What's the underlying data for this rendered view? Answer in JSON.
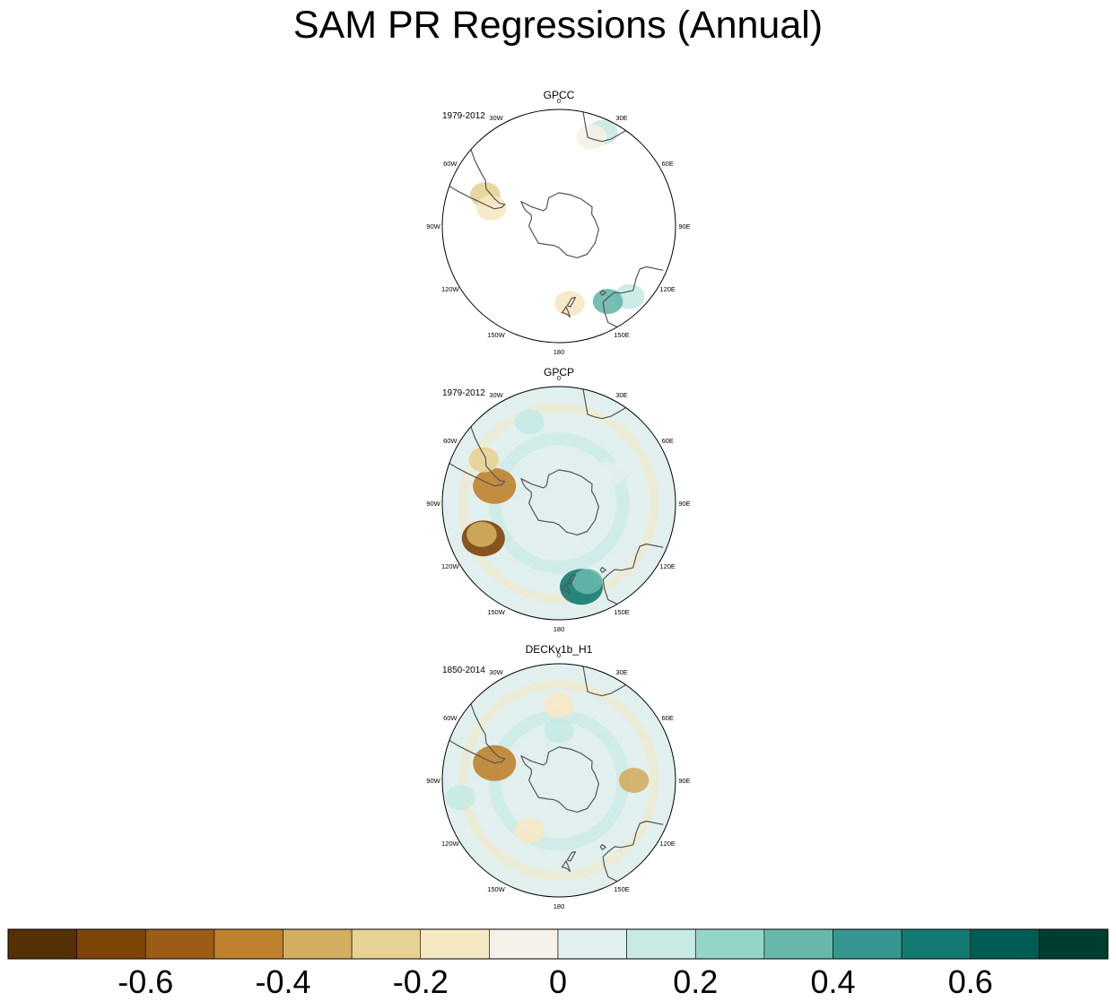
{
  "chart_data": {
    "type": "heatmap",
    "title": "SAM PR Regressions (Annual)",
    "projection": "south polar stereographic",
    "lon_labels": [
      "0",
      "30E",
      "60E",
      "90E",
      "120E",
      "150E",
      "180",
      "150W",
      "120W",
      "90W",
      "60W",
      "30W"
    ],
    "panels": [
      {
        "name": "GPCC",
        "period": "1979-2012",
        "coverage": "land only",
        "features": [
          {
            "region": "southern South America",
            "lon": -67,
            "lat": -42,
            "value": -0.3
          },
          {
            "region": "southern South America coast",
            "lon": -75,
            "lat": -48,
            "value": -0.15
          },
          {
            "region": "southern Africa",
            "lon": 25,
            "lat": -28,
            "value": 0.1
          },
          {
            "region": "southern Africa tip",
            "lon": 20,
            "lat": -33,
            "value": -0.1
          },
          {
            "region": "southern Australia",
            "lon": 135,
            "lat": -30,
            "value": 0.1
          },
          {
            "region": "southeast Australia",
            "lon": 147,
            "lat": -36,
            "value": 0.35
          },
          {
            "region": "New Zealand",
            "lon": 172,
            "lat": -43,
            "value": -0.15
          }
        ]
      },
      {
        "name": "GPCP",
        "period": "1979-2012",
        "coverage": "global",
        "features": [
          {
            "region": "South Pacific",
            "lon": -115,
            "lat": -40,
            "value": -0.65
          },
          {
            "region": "South Pacific outer",
            "lon": -112,
            "lat": -40,
            "value": -0.35
          },
          {
            "region": "southern Chile coast",
            "lon": -75,
            "lat": -50,
            "value": -0.45
          },
          {
            "region": "Argentina",
            "lon": -60,
            "lat": -38,
            "value": -0.25
          },
          {
            "region": "Tasman Sea",
            "lon": 165,
            "lat": -38,
            "value": 0.55
          },
          {
            "region": "Tasman Sea outer",
            "lon": 160,
            "lat": -40,
            "value": 0.3
          },
          {
            "region": "South Atlantic",
            "lon": -20,
            "lat": -38,
            "value": 0.15
          },
          {
            "region": "Southern Ocean ring",
            "lon": 60,
            "lat": -55,
            "value": 0.05
          }
        ]
      },
      {
        "name": "DECKv1b_H1",
        "period": "1850-2014",
        "coverage": "global",
        "features": [
          {
            "region": "Indian Ocean band",
            "lon": 90,
            "lat": -45,
            "value": -0.35
          },
          {
            "region": "southern Chile coast",
            "lon": -75,
            "lat": -50,
            "value": -0.45
          },
          {
            "region": "Antarctic margin ring",
            "lon": 0,
            "lat": -60,
            "value": 0.15
          },
          {
            "region": "mid-latitude ring",
            "lon": 0,
            "lat": -45,
            "value": -0.15
          },
          {
            "region": "Pacific ring",
            "lon": -150,
            "lat": -55,
            "value": -0.2
          },
          {
            "region": "subtropical ring",
            "lon": -100,
            "lat": -30,
            "value": 0.15
          }
        ]
      }
    ],
    "colorbar": {
      "levels": [
        -0.7,
        -0.6,
        -0.5,
        -0.4,
        -0.3,
        -0.2,
        -0.1,
        0,
        0.1,
        0.2,
        0.3,
        0.4,
        0.5,
        0.6,
        0.7
      ],
      "colors": [
        "#543005",
        "#7c4507",
        "#9c5c16",
        "#bf812d",
        "#d3ae61",
        "#e7d195",
        "#f6e8c3",
        "#f5f1e6",
        "#e1f0ee",
        "#c7eae5",
        "#95d4ca",
        "#67b7ab",
        "#35978f",
        "#137a72",
        "#015c53",
        "#003c30"
      ],
      "tick_labels": [
        "-0.6",
        "-0.4",
        "-0.2",
        "0",
        "0.2",
        "0.4",
        "0.6"
      ],
      "tick_values": [
        -0.6,
        -0.4,
        -0.2,
        0,
        0.2,
        0.4,
        0.6
      ]
    }
  }
}
